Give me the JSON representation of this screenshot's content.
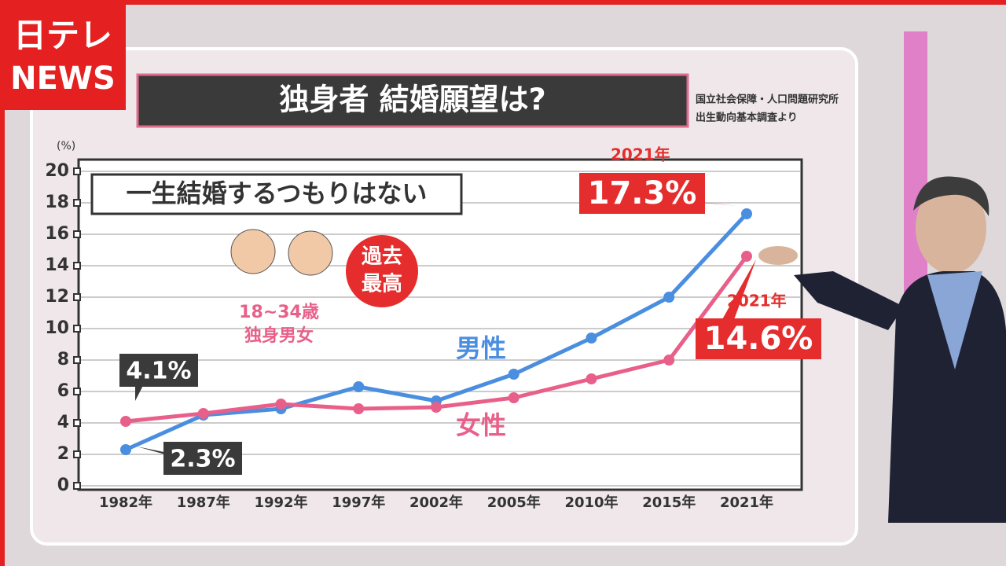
{
  "logo": [
    "日テレ",
    "NEWS"
  ],
  "chart_data": {
    "type": "line",
    "title": "独身者 結婚願望は?",
    "source": [
      "国立社会保障・人口問題研究所",
      "出生動向基本調査より"
    ],
    "y_unit": "(%)",
    "annotation": "一生結婚するつもりはない",
    "subject": [
      "18~34歳",
      "独身男女"
    ],
    "badge": [
      "過去",
      "最高"
    ],
    "categories": [
      "1982年",
      "1987年",
      "1992年",
      "1997年",
      "2002年",
      "2005年",
      "2010年",
      "2015年",
      "2021年"
    ],
    "series": [
      {
        "name": "男性",
        "color": "#4a8ee0",
        "values": [
          2.3,
          4.5,
          4.9,
          6.3,
          5.4,
          7.1,
          9.4,
          12.0,
          17.3
        ],
        "value_labels": [
          "2.3%",
          null,
          null,
          null,
          null,
          null,
          null,
          null,
          "17.3%"
        ]
      },
      {
        "name": "女性",
        "color": "#e8608a",
        "values": [
          4.1,
          4.6,
          5.2,
          4.9,
          5.0,
          5.6,
          6.8,
          8.0,
          14.6
        ],
        "value_labels": [
          "4.1%",
          null,
          null,
          null,
          null,
          null,
          null,
          null,
          "14.6%"
        ]
      }
    ],
    "ylim": [
      0,
      20
    ],
    "yticks": [
      0,
      2,
      4,
      6,
      8,
      10,
      12,
      14,
      16,
      18,
      20
    ],
    "grid": true
  }
}
